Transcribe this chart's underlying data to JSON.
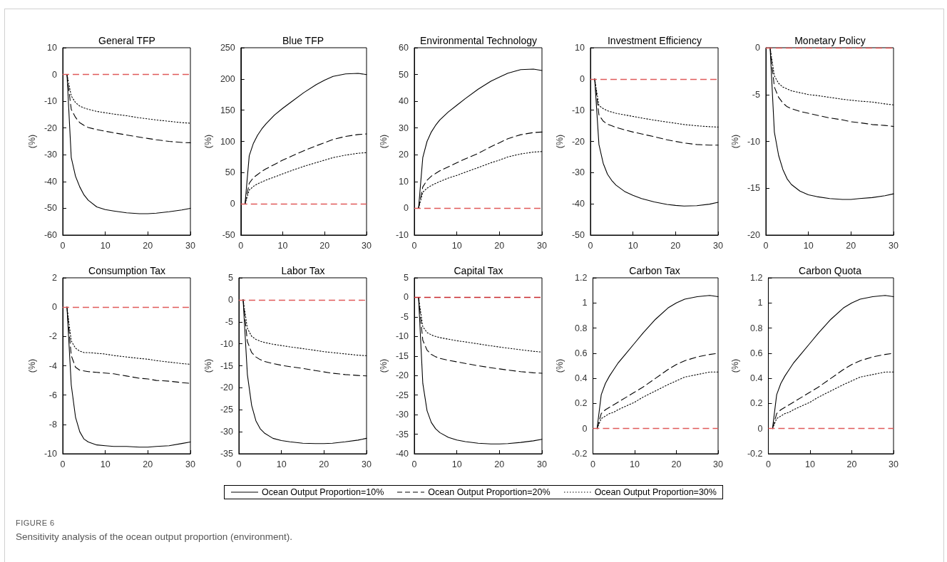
{
  "chart_data": [
    {
      "type": "line",
      "title": "General TFP",
      "ylabel": "(%)",
      "x": [
        1,
        2,
        3,
        4,
        5,
        6,
        8,
        10,
        12,
        15,
        18,
        20,
        22,
        25,
        28,
        30
      ],
      "xlim": [
        0,
        30
      ],
      "xticks": [
        0,
        10,
        20,
        30
      ],
      "ylim": [
        -60,
        10
      ],
      "yticks": [
        -60,
        -50,
        -40,
        -30,
        -20,
        -10,
        0,
        10
      ],
      "grid": false,
      "marker": "none",
      "legend": "bottom",
      "annotations": [
        "FIGURE 6",
        "Sensitivity analysis of the ocean output proportion (environment)."
      ],
      "ref_lines": [
        {
          "axis": "y",
          "value": 0,
          "color": "#e05a5a",
          "line_style": "dashed"
        }
      ],
      "series": [
        {
          "name": "Ocean Output Proportion=10%",
          "color": "#000000",
          "line_style": "solid",
          "values": [
            0,
            -31,
            -38,
            -42,
            -45,
            -47,
            -49.5,
            -50.5,
            -51,
            -51.7,
            -52,
            -52,
            -51.8,
            -51.3,
            -50.6,
            -50
          ]
        },
        {
          "name": "Ocean Output Proportion=20%",
          "color": "#000000",
          "line_style": "dashed",
          "values": [
            0,
            -13,
            -16,
            -18,
            -19,
            -19.8,
            -20.6,
            -21.2,
            -21.8,
            -22.6,
            -23.4,
            -23.9,
            -24.4,
            -25,
            -25.4,
            -25.5
          ]
        },
        {
          "name": "Ocean Output Proportion=30%",
          "color": "#000000",
          "line_style": "dotted",
          "values": [
            0,
            -8,
            -10.5,
            -11.8,
            -12.5,
            -13,
            -13.8,
            -14.3,
            -14.8,
            -15.4,
            -16.2,
            -16.6,
            -17,
            -17.5,
            -18,
            -18.2
          ]
        }
      ]
    },
    {
      "type": "line",
      "title": "Blue TFP",
      "ylabel": "(%)",
      "x": [
        1,
        2,
        3,
        4,
        5,
        6,
        8,
        10,
        12,
        15,
        18,
        20,
        22,
        25,
        28,
        30
      ],
      "xlim": [
        0,
        30
      ],
      "xticks": [
        0,
        10,
        20,
        30
      ],
      "ylim": [
        -50,
        250
      ],
      "yticks": [
        -50,
        0,
        50,
        100,
        150,
        200,
        250
      ],
      "grid": false,
      "marker": "none",
      "ref_lines": [
        {
          "axis": "y",
          "value": 0,
          "color": "#e05a5a",
          "line_style": "dashed"
        }
      ],
      "series": [
        {
          "color": "#000000",
          "line_style": "solid",
          "values": [
            0,
            77,
            97,
            110,
            120,
            128,
            142,
            153,
            163,
            178,
            191,
            198,
            204,
            208,
            209,
            207
          ]
        },
        {
          "color": "#000000",
          "line_style": "dashed",
          "values": [
            0,
            33,
            42,
            47,
            52,
            56,
            63,
            70,
            76,
            85,
            93,
            98,
            103,
            108,
            111,
            112
          ]
        },
        {
          "color": "#000000",
          "line_style": "dotted",
          "values": [
            0,
            22,
            28,
            32,
            35,
            38,
            43,
            48,
            53,
            60,
            66,
            70,
            74,
            78,
            81,
            82
          ]
        }
      ]
    },
    {
      "type": "line",
      "title": "Environmental Technology",
      "ylabel": "(%)",
      "x": [
        1,
        2,
        3,
        4,
        5,
        6,
        8,
        10,
        12,
        15,
        18,
        20,
        22,
        25,
        28,
        30
      ],
      "xlim": [
        0,
        30
      ],
      "xticks": [
        0,
        10,
        20,
        30
      ],
      "ylim": [
        -10,
        60
      ],
      "yticks": [
        -10,
        0,
        10,
        20,
        30,
        40,
        50,
        60
      ],
      "grid": false,
      "marker": "none",
      "ref_lines": [
        {
          "axis": "y",
          "value": 0,
          "color": "#e05a5a",
          "line_style": "dashed"
        }
      ],
      "series": [
        {
          "color": "#000000",
          "line_style": "solid",
          "values": [
            0,
            19,
            25,
            28.5,
            31,
            33,
            36,
            38.5,
            41,
            44.5,
            47.5,
            49,
            50.5,
            51.8,
            52,
            51.5
          ]
        },
        {
          "color": "#000000",
          "line_style": "dashed",
          "values": [
            0,
            8,
            10.5,
            12,
            13,
            14,
            15.5,
            17,
            18.5,
            20.5,
            23,
            24.5,
            26,
            27.5,
            28.3,
            28.5
          ]
        },
        {
          "color": "#000000",
          "line_style": "dotted",
          "values": [
            0,
            6,
            7.5,
            8.5,
            9.3,
            10,
            11.3,
            12.3,
            13.5,
            15.2,
            17,
            18,
            19.2,
            20.3,
            21,
            21.2
          ]
        }
      ]
    },
    {
      "type": "line",
      "title": "Investment Efficiency",
      "ylabel": "(%)",
      "x": [
        1,
        2,
        3,
        4,
        5,
        6,
        8,
        10,
        12,
        15,
        18,
        20,
        22,
        25,
        28,
        30
      ],
      "xlim": [
        0,
        30
      ],
      "xticks": [
        0,
        10,
        20,
        30
      ],
      "ylim": [
        -50,
        10
      ],
      "yticks": [
        -50,
        -40,
        -30,
        -20,
        -10,
        0,
        10
      ],
      "grid": false,
      "marker": "none",
      "ref_lines": [
        {
          "axis": "y",
          "value": 0,
          "color": "#e05a5a",
          "line_style": "dashed"
        }
      ],
      "series": [
        {
          "color": "#000000",
          "line_style": "solid",
          "values": [
            0,
            -21,
            -27,
            -30.5,
            -32.5,
            -34,
            -36,
            -37.3,
            -38.3,
            -39.4,
            -40.2,
            -40.5,
            -40.7,
            -40.6,
            -40.1,
            -39.5
          ]
        },
        {
          "color": "#000000",
          "line_style": "dashed",
          "values": [
            0,
            -11.5,
            -13.5,
            -14.5,
            -15,
            -15.5,
            -16.3,
            -17,
            -17.6,
            -18.5,
            -19.5,
            -20,
            -20.5,
            -21,
            -21.2,
            -21.2
          ]
        },
        {
          "color": "#000000",
          "line_style": "dotted",
          "values": [
            0,
            -8.5,
            -9.5,
            -10.2,
            -10.6,
            -11,
            -11.5,
            -12,
            -12.5,
            -13.2,
            -13.8,
            -14.2,
            -14.6,
            -15,
            -15.3,
            -15.4
          ]
        }
      ]
    },
    {
      "type": "line",
      "title": "Monetary Policy",
      "ylabel": "(%)",
      "x": [
        1,
        2,
        3,
        4,
        5,
        6,
        8,
        10,
        12,
        15,
        18,
        20,
        22,
        25,
        28,
        30
      ],
      "xlim": [
        0,
        30
      ],
      "xticks": [
        0,
        10,
        20,
        30
      ],
      "ylim": [
        -20,
        0
      ],
      "yticks": [
        -20,
        -15,
        -10,
        -5,
        0
      ],
      "grid": false,
      "marker": "none",
      "ref_lines": [
        {
          "axis": "y",
          "value": 0,
          "color": "#e05a5a",
          "line_style": "dashed"
        }
      ],
      "series": [
        {
          "color": "#000000",
          "line_style": "solid",
          "values": [
            0,
            -9,
            -11.5,
            -13,
            -14,
            -14.6,
            -15.3,
            -15.7,
            -15.9,
            -16.1,
            -16.2,
            -16.2,
            -16.1,
            -16,
            -15.8,
            -15.6
          ]
        },
        {
          "color": "#000000",
          "line_style": "dashed",
          "values": [
            0,
            -4.2,
            -5.3,
            -5.9,
            -6.3,
            -6.5,
            -6.8,
            -7,
            -7.2,
            -7.5,
            -7.7,
            -7.9,
            -8,
            -8.2,
            -8.3,
            -8.4
          ]
        },
        {
          "color": "#000000",
          "line_style": "dotted",
          "values": [
            0,
            -3,
            -3.8,
            -4.2,
            -4.4,
            -4.6,
            -4.8,
            -5,
            -5.1,
            -5.3,
            -5.5,
            -5.6,
            -5.7,
            -5.8,
            -6,
            -6.1
          ]
        }
      ]
    },
    {
      "type": "line",
      "title": "Consumption Tax",
      "ylabel": "(%)",
      "x": [
        1,
        2,
        3,
        4,
        5,
        6,
        8,
        10,
        12,
        15,
        18,
        20,
        22,
        25,
        28,
        30
      ],
      "xlim": [
        0,
        30
      ],
      "xticks": [
        0,
        10,
        20,
        30
      ],
      "ylim": [
        -10,
        2
      ],
      "yticks": [
        -10,
        -8,
        -6,
        -4,
        -2,
        0,
        2
      ],
      "grid": false,
      "marker": "none",
      "ref_lines": [
        {
          "axis": "y",
          "value": 0,
          "color": "#e05a5a",
          "line_style": "dashed"
        }
      ],
      "series": [
        {
          "color": "#000000",
          "line_style": "solid",
          "values": [
            0,
            -5.3,
            -7.5,
            -8.5,
            -9,
            -9.2,
            -9.4,
            -9.45,
            -9.5,
            -9.5,
            -9.55,
            -9.55,
            -9.5,
            -9.45,
            -9.3,
            -9.2
          ]
        },
        {
          "color": "#000000",
          "line_style": "dashed",
          "values": [
            0,
            -3.3,
            -4.1,
            -4.3,
            -4.35,
            -4.4,
            -4.45,
            -4.5,
            -4.55,
            -4.7,
            -4.85,
            -4.9,
            -5,
            -5.05,
            -5.15,
            -5.2
          ]
        },
        {
          "color": "#000000",
          "line_style": "dotted",
          "values": [
            0,
            -2.3,
            -2.8,
            -3,
            -3.1,
            -3.1,
            -3.15,
            -3.2,
            -3.3,
            -3.4,
            -3.5,
            -3.55,
            -3.65,
            -3.75,
            -3.85,
            -3.9
          ]
        }
      ]
    },
    {
      "type": "line",
      "title": "Labor Tax",
      "ylabel": "(%)",
      "x": [
        1,
        2,
        3,
        4,
        5,
        6,
        8,
        10,
        12,
        15,
        18,
        20,
        22,
        25,
        28,
        30
      ],
      "xlim": [
        0,
        30
      ],
      "xticks": [
        0,
        10,
        20,
        30
      ],
      "ylim": [
        -35,
        5
      ],
      "yticks": [
        -35,
        -30,
        -25,
        -20,
        -15,
        -10,
        -5,
        0,
        5
      ],
      "grid": false,
      "marker": "none",
      "ref_lines": [
        {
          "axis": "y",
          "value": 0,
          "color": "#e05a5a",
          "line_style": "dashed"
        }
      ],
      "series": [
        {
          "color": "#000000",
          "line_style": "solid",
          "values": [
            0,
            -17,
            -24,
            -27.5,
            -29.3,
            -30.3,
            -31.5,
            -32,
            -32.3,
            -32.6,
            -32.7,
            -32.7,
            -32.6,
            -32.3,
            -31.9,
            -31.5
          ]
        },
        {
          "color": "#000000",
          "line_style": "dashed",
          "values": [
            0,
            -9.5,
            -12,
            -13,
            -13.6,
            -14,
            -14.5,
            -14.9,
            -15.2,
            -15.6,
            -16.1,
            -16.4,
            -16.7,
            -17,
            -17.2,
            -17.3
          ]
        },
        {
          "color": "#000000",
          "line_style": "dotted",
          "values": [
            0,
            -6.5,
            -8.3,
            -9,
            -9.4,
            -9.7,
            -10.1,
            -10.4,
            -10.7,
            -11.1,
            -11.5,
            -11.8,
            -12,
            -12.3,
            -12.6,
            -12.7
          ]
        }
      ]
    },
    {
      "type": "line",
      "title": "Capital Tax",
      "ylabel": "(%)",
      "x": [
        1,
        2,
        3,
        4,
        5,
        6,
        8,
        10,
        12,
        15,
        18,
        20,
        22,
        25,
        28,
        30
      ],
      "xlim": [
        0,
        30
      ],
      "xticks": [
        0,
        10,
        20,
        30
      ],
      "ylim": [
        -40,
        5
      ],
      "yticks": [
        -40,
        -35,
        -30,
        -25,
        -20,
        -15,
        -10,
        -5,
        0,
        5
      ],
      "grid": false,
      "marker": "none",
      "ref_lines": [
        {
          "axis": "y",
          "value": 0,
          "color": "#c8282d",
          "line_style": "dashed"
        }
      ],
      "series": [
        {
          "color": "#000000",
          "line_style": "solid",
          "values": [
            0,
            -22,
            -29,
            -32,
            -33.6,
            -34.6,
            -35.8,
            -36.5,
            -36.9,
            -37.3,
            -37.5,
            -37.5,
            -37.4,
            -37.1,
            -36.7,
            -36.3
          ]
        },
        {
          "color": "#000000",
          "line_style": "dashed",
          "values": [
            0,
            -11,
            -13.5,
            -14.6,
            -15.2,
            -15.6,
            -16.1,
            -16.5,
            -16.9,
            -17.5,
            -18,
            -18.3,
            -18.6,
            -19,
            -19.3,
            -19.4
          ]
        },
        {
          "color": "#000000",
          "line_style": "dotted",
          "values": [
            0,
            -7.5,
            -9,
            -9.6,
            -10,
            -10.3,
            -10.7,
            -11.1,
            -11.4,
            -11.9,
            -12.4,
            -12.7,
            -13,
            -13.4,
            -13.8,
            -14
          ]
        }
      ]
    },
    {
      "type": "line",
      "title": "Carbon Tax",
      "ylabel": "(%)",
      "x": [
        1,
        2,
        3,
        4,
        5,
        6,
        8,
        10,
        12,
        15,
        18,
        20,
        22,
        25,
        28,
        30
      ],
      "xlim": [
        0,
        30
      ],
      "xticks": [
        0,
        10,
        20,
        30
      ],
      "ylim": [
        -0.2,
        1.2
      ],
      "yticks": [
        -0.2,
        0,
        0.2,
        0.4,
        0.6,
        0.8,
        1,
        1.2
      ],
      "grid": false,
      "marker": "none",
      "ref_lines": [
        {
          "axis": "y",
          "value": 0,
          "color": "#e05a5a",
          "line_style": "dashed"
        }
      ],
      "series": [
        {
          "color": "#000000",
          "line_style": "solid",
          "values": [
            0,
            0.27,
            0.36,
            0.42,
            0.47,
            0.52,
            0.6,
            0.68,
            0.76,
            0.87,
            0.96,
            1.0,
            1.03,
            1.05,
            1.06,
            1.05
          ]
        },
        {
          "color": "#000000",
          "line_style": "dashed",
          "values": [
            0,
            0.12,
            0.15,
            0.17,
            0.19,
            0.21,
            0.25,
            0.29,
            0.33,
            0.4,
            0.47,
            0.51,
            0.54,
            0.57,
            0.59,
            0.6
          ]
        },
        {
          "color": "#000000",
          "line_style": "dotted",
          "values": [
            0,
            0.08,
            0.1,
            0.12,
            0.13,
            0.15,
            0.18,
            0.21,
            0.25,
            0.3,
            0.35,
            0.38,
            0.41,
            0.43,
            0.45,
            0.45
          ]
        }
      ]
    },
    {
      "type": "line",
      "title": "Carbon Quota",
      "ylabel": "(%)",
      "x": [
        1,
        2,
        3,
        4,
        5,
        6,
        8,
        10,
        12,
        15,
        18,
        20,
        22,
        25,
        28,
        30
      ],
      "xlim": [
        0,
        30
      ],
      "xticks": [
        0,
        10,
        20,
        30
      ],
      "ylim": [
        -0.2,
        1.2
      ],
      "yticks": [
        -0.2,
        0,
        0.2,
        0.4,
        0.6,
        0.8,
        1,
        1.2
      ],
      "grid": false,
      "marker": "none",
      "ref_lines": [
        {
          "axis": "y",
          "value": 0,
          "color": "#e05a5a",
          "line_style": "dashed"
        }
      ],
      "series": [
        {
          "color": "#000000",
          "line_style": "solid",
          "values": [
            0,
            0.27,
            0.36,
            0.42,
            0.47,
            0.52,
            0.6,
            0.68,
            0.76,
            0.87,
            0.96,
            1.0,
            1.03,
            1.05,
            1.06,
            1.05
          ]
        },
        {
          "color": "#000000",
          "line_style": "dashed",
          "values": [
            0,
            0.12,
            0.15,
            0.17,
            0.19,
            0.21,
            0.25,
            0.29,
            0.33,
            0.4,
            0.47,
            0.51,
            0.54,
            0.57,
            0.59,
            0.6
          ]
        },
        {
          "color": "#000000",
          "line_style": "dotted",
          "values": [
            0,
            0.08,
            0.1,
            0.12,
            0.13,
            0.15,
            0.18,
            0.21,
            0.25,
            0.3,
            0.35,
            0.38,
            0.41,
            0.43,
            0.45,
            0.45
          ]
        }
      ]
    }
  ]
}
